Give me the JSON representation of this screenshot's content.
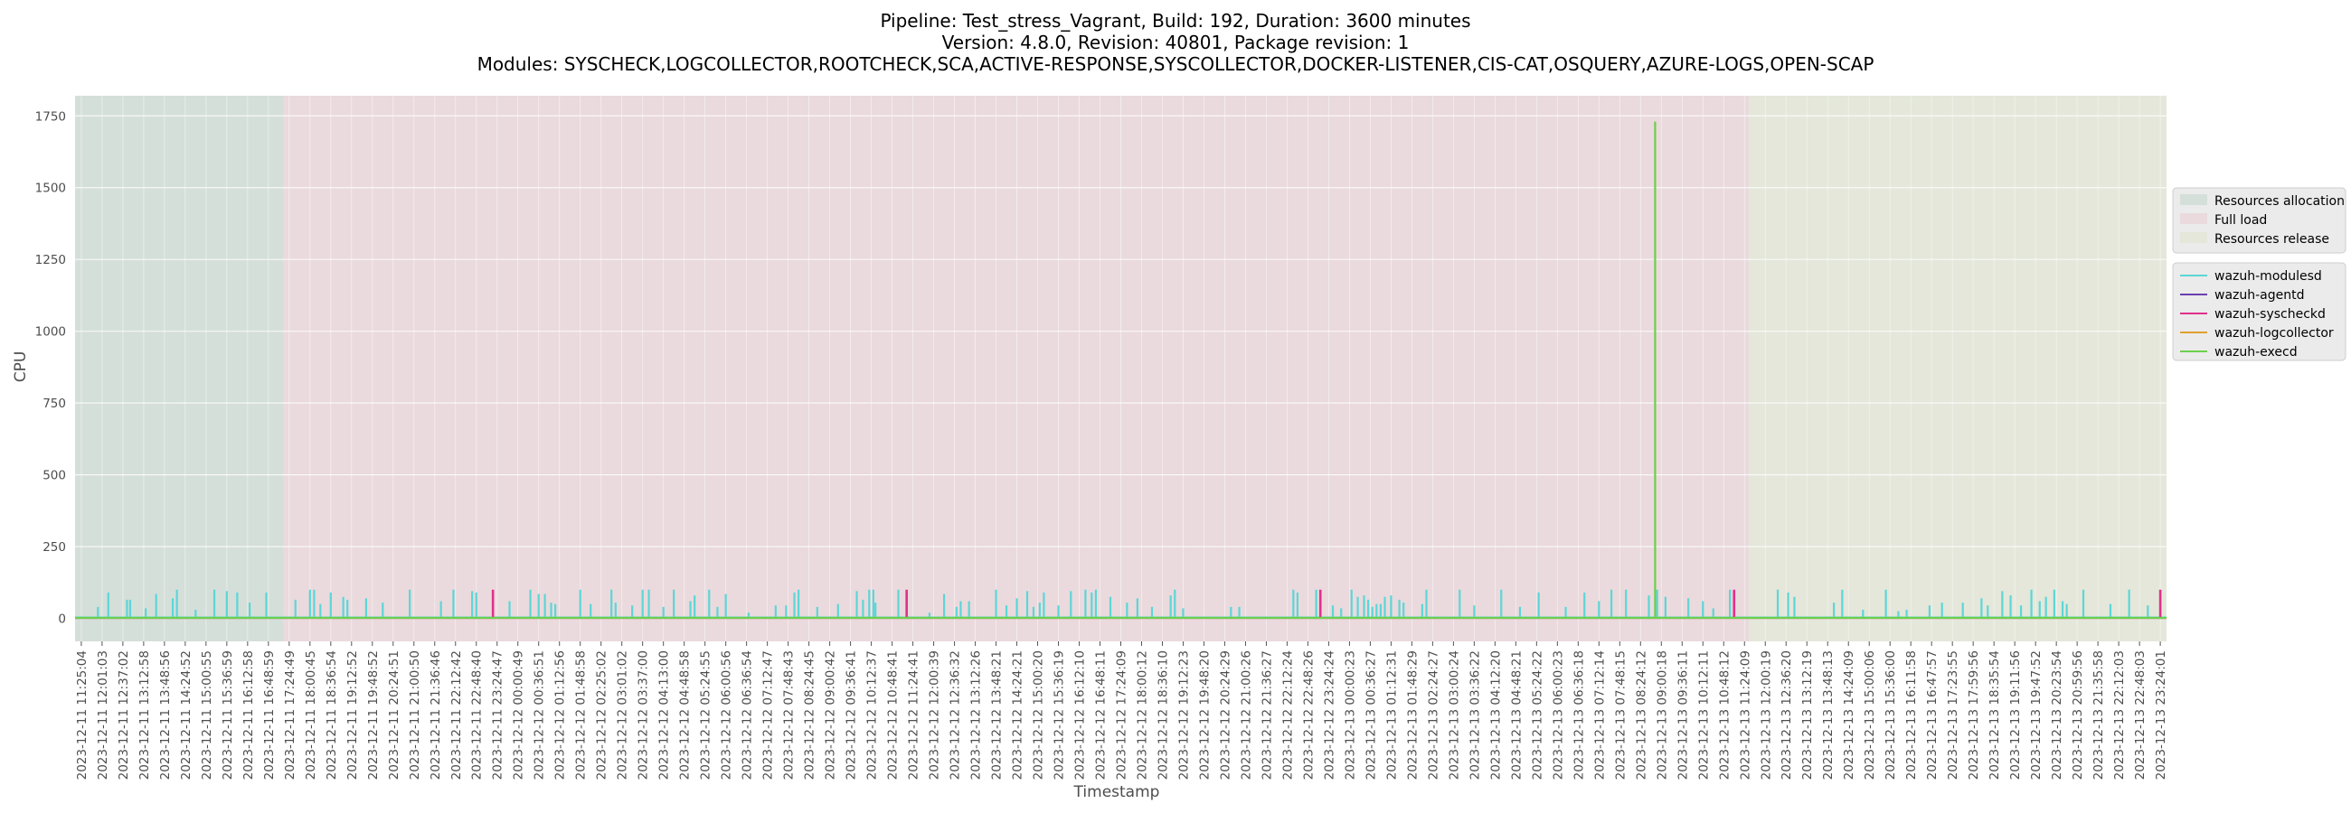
{
  "chart_data": {
    "type": "line",
    "title_lines": [
      "Pipeline: Test_stress_Vagrant, Build: 192, Duration: 3600 minutes",
      "Version: 4.8.0, Revision: 40801, Package revision: 1",
      "Modules: SYSCHECK,LOGCOLLECTOR,ROOTCHECK,SCA,ACTIVE-RESPONSE,SYSCOLLECTOR,DOCKER-LISTENER,CIS-CAT,OSQUERY,AZURE-LOGS,OPEN-SCAP"
    ],
    "xlabel": "Timestamp",
    "ylabel": "CPU",
    "ylim": [
      -80,
      1820
    ],
    "yticks": [
      0,
      250,
      500,
      750,
      1000,
      1250,
      1500,
      1750
    ],
    "grid": true,
    "x_ticks": [
      "2023-12-11 11:25:04",
      "2023-12-11 12:01:03",
      "2023-12-11 12:37:02",
      "2023-12-11 13:12:58",
      "2023-12-11 13:48:56",
      "2023-12-11 14:24:52",
      "2023-12-11 15:00:55",
      "2023-12-11 15:36:59",
      "2023-12-11 16:12:58",
      "2023-12-11 16:48:59",
      "2023-12-11 17:24:49",
      "2023-12-11 18:00:45",
      "2023-12-11 18:36:54",
      "2023-12-11 19:12:52",
      "2023-12-11 19:48:52",
      "2023-12-11 20:24:51",
      "2023-12-11 21:00:50",
      "2023-12-11 21:36:46",
      "2023-12-11 22:12:42",
      "2023-12-11 22:48:40",
      "2023-12-11 23:24:47",
      "2023-12-12 00:00:49",
      "2023-12-12 00:36:51",
      "2023-12-12 01:12:56",
      "2023-12-12 01:48:58",
      "2023-12-12 02:25:02",
      "2023-12-12 03:01:02",
      "2023-12-12 03:37:00",
      "2023-12-12 04:13:00",
      "2023-12-12 04:48:58",
      "2023-12-12 05:24:55",
      "2023-12-12 06:00:56",
      "2023-12-12 06:36:54",
      "2023-12-12 07:12:47",
      "2023-12-12 07:48:43",
      "2023-12-12 08:24:45",
      "2023-12-12 09:00:42",
      "2023-12-12 09:36:41",
      "2023-12-12 10:12:37",
      "2023-12-12 10:48:41",
      "2023-12-12 11:24:41",
      "2023-12-12 12:00:39",
      "2023-12-12 12:36:32",
      "2023-12-12 13:12:26",
      "2023-12-12 13:48:21",
      "2023-12-12 14:24:21",
      "2023-12-12 15:00:20",
      "2023-12-12 15:36:19",
      "2023-12-12 16:12:10",
      "2023-12-12 16:48:11",
      "2023-12-12 17:24:09",
      "2023-12-12 18:00:12",
      "2023-12-12 18:36:10",
      "2023-12-12 19:12:23",
      "2023-12-12 19:48:20",
      "2023-12-12 20:24:29",
      "2023-12-12 21:00:26",
      "2023-12-12 21:36:27",
      "2023-12-12 22:12:24",
      "2023-12-12 22:48:26",
      "2023-12-12 23:24:24",
      "2023-12-13 00:00:23",
      "2023-12-13 00:36:27",
      "2023-12-13 01:12:31",
      "2023-12-13 01:48:29",
      "2023-12-13 02:24:27",
      "2023-12-13 03:00:24",
      "2023-12-13 03:36:22",
      "2023-12-13 04:12:20",
      "2023-12-13 04:48:21",
      "2023-12-13 05:24:22",
      "2023-12-13 06:00:23",
      "2023-12-13 06:36:18",
      "2023-12-13 07:12:14",
      "2023-12-13 07:48:15",
      "2023-12-13 08:24:12",
      "2023-12-13 09:00:18",
      "2023-12-13 09:36:11",
      "2023-12-13 10:12:11",
      "2023-12-13 10:48:12",
      "2023-12-13 11:24:09",
      "2023-12-13 12:00:19",
      "2023-12-13 12:36:20",
      "2023-12-13 13:12:19",
      "2023-12-13 13:48:13",
      "2023-12-13 14:24:09",
      "2023-12-13 15:00:06",
      "2023-12-13 15:36:00",
      "2023-12-13 16:11:58",
      "2023-12-13 16:47:57",
      "2023-12-13 17:23:55",
      "2023-12-13 17:59:56",
      "2023-12-13 18:35:54",
      "2023-12-13 19:11:56",
      "2023-12-13 19:47:52",
      "2023-12-13 20:23:54",
      "2023-12-13 20:59:56",
      "2023-12-13 21:35:58",
      "2023-12-13 22:12:03",
      "2023-12-13 22:48:03",
      "2023-12-13 23:24:01"
    ],
    "phases": [
      {
        "name": "Resources allocation",
        "start": 0,
        "end": 10,
        "color": "#a8c8b4"
      },
      {
        "name": "Full load",
        "start": 10,
        "end": 80.5,
        "color": "#e8b8c0"
      },
      {
        "name": "Resources release",
        "start": 80.5,
        "end": 101,
        "color": "#d8e0b8"
      }
    ],
    "spikes_modulesd": [
      [
        0.8,
        40
      ],
      [
        1.3,
        90
      ],
      [
        2.2,
        65
      ],
      [
        2.35,
        65
      ],
      [
        3.1,
        35
      ],
      [
        3.6,
        85
      ],
      [
        4.4,
        70
      ],
      [
        4.6,
        100
      ],
      [
        5.5,
        30
      ],
      [
        6.4,
        100
      ],
      [
        7.0,
        95
      ],
      [
        7.5,
        90
      ],
      [
        8.1,
        55
      ],
      [
        8.9,
        90
      ],
      [
        10.3,
        65
      ],
      [
        11.0,
        100
      ],
      [
        11.2,
        100
      ],
      [
        11.5,
        50
      ],
      [
        12.0,
        90
      ],
      [
        12.6,
        75
      ],
      [
        12.8,
        65
      ],
      [
        13.7,
        70
      ],
      [
        14.5,
        55
      ],
      [
        15.8,
        100
      ],
      [
        17.3,
        60
      ],
      [
        17.9,
        100
      ],
      [
        18.8,
        95
      ],
      [
        19.0,
        90
      ],
      [
        20.6,
        60
      ],
      [
        21.6,
        100
      ],
      [
        22.0,
        85
      ],
      [
        22.3,
        85
      ],
      [
        22.6,
        55
      ],
      [
        22.8,
        50
      ],
      [
        24.0,
        100
      ],
      [
        24.5,
        50
      ],
      [
        25.5,
        100
      ],
      [
        25.7,
        55
      ],
      [
        26.5,
        45
      ],
      [
        27.0,
        100
      ],
      [
        27.3,
        100
      ],
      [
        28.0,
        40
      ],
      [
        28.5,
        100
      ],
      [
        29.3,
        60
      ],
      [
        29.5,
        80
      ],
      [
        30.2,
        100
      ],
      [
        30.6,
        40
      ],
      [
        31.0,
        85
      ],
      [
        32.1,
        20
      ],
      [
        33.4,
        45
      ],
      [
        33.9,
        45
      ],
      [
        34.3,
        90
      ],
      [
        34.5,
        100
      ],
      [
        35.4,
        40
      ],
      [
        36.4,
        50
      ],
      [
        37.3,
        95
      ],
      [
        37.6,
        65
      ],
      [
        37.9,
        100
      ],
      [
        38.1,
        100
      ],
      [
        38.2,
        55
      ],
      [
        39.3,
        100
      ],
      [
        40.8,
        20
      ],
      [
        41.5,
        85
      ],
      [
        42.1,
        40
      ],
      [
        42.3,
        60
      ],
      [
        42.7,
        60
      ],
      [
        44.0,
        100
      ],
      [
        44.5,
        45
      ],
      [
        45.0,
        70
      ],
      [
        45.5,
        95
      ],
      [
        45.8,
        40
      ],
      [
        46.1,
        55
      ],
      [
        46.3,
        90
      ],
      [
        47.0,
        45
      ],
      [
        47.6,
        95
      ],
      [
        48.3,
        100
      ],
      [
        48.6,
        90
      ],
      [
        48.8,
        100
      ],
      [
        49.5,
        75
      ],
      [
        50.3,
        55
      ],
      [
        50.8,
        70
      ],
      [
        51.5,
        40
      ],
      [
        52.4,
        80
      ],
      [
        52.6,
        100
      ],
      [
        53.0,
        35
      ],
      [
        55.3,
        40
      ],
      [
        55.7,
        40
      ],
      [
        58.3,
        100
      ],
      [
        58.5,
        90
      ],
      [
        59.4,
        100
      ],
      [
        59.6,
        90
      ],
      [
        60.2,
        45
      ],
      [
        60.6,
        35
      ],
      [
        61.1,
        100
      ],
      [
        61.4,
        75
      ],
      [
        61.7,
        80
      ],
      [
        61.9,
        65
      ],
      [
        62.1,
        40
      ],
      [
        62.3,
        50
      ],
      [
        62.5,
        50
      ],
      [
        62.7,
        75
      ],
      [
        63.0,
        80
      ],
      [
        63.4,
        65
      ],
      [
        63.6,
        55
      ],
      [
        64.5,
        50
      ],
      [
        64.7,
        100
      ],
      [
        66.3,
        100
      ],
      [
        67.0,
        45
      ],
      [
        68.3,
        100
      ],
      [
        69.2,
        40
      ],
      [
        70.1,
        90
      ],
      [
        71.4,
        40
      ],
      [
        72.3,
        90
      ],
      [
        73.0,
        60
      ],
      [
        73.6,
        100
      ],
      [
        74.3,
        100
      ],
      [
        75.4,
        80
      ],
      [
        75.8,
        100
      ],
      [
        76.2,
        75
      ],
      [
        77.3,
        70
      ],
      [
        78.0,
        60
      ],
      [
        78.5,
        35
      ],
      [
        79.3,
        100
      ],
      [
        81.6,
        100
      ],
      [
        82.1,
        90
      ],
      [
        82.4,
        75
      ],
      [
        84.3,
        55
      ],
      [
        84.7,
        100
      ],
      [
        85.7,
        30
      ],
      [
        86.8,
        100
      ],
      [
        87.4,
        25
      ],
      [
        87.8,
        30
      ],
      [
        88.9,
        45
      ],
      [
        89.5,
        55
      ],
      [
        90.5,
        55
      ],
      [
        91.4,
        70
      ],
      [
        91.7,
        45
      ],
      [
        92.4,
        95
      ],
      [
        92.8,
        80
      ],
      [
        93.3,
        45
      ],
      [
        93.8,
        100
      ],
      [
        94.2,
        60
      ],
      [
        94.5,
        75
      ],
      [
        94.9,
        100
      ],
      [
        95.3,
        60
      ],
      [
        95.5,
        50
      ],
      [
        96.3,
        100
      ],
      [
        97.6,
        50
      ],
      [
        98.5,
        100
      ],
      [
        99.4,
        45
      ]
    ],
    "spikes_syscheckd": [
      [
        19.8,
        100
      ],
      [
        39.7,
        100
      ],
      [
        59.6,
        100
      ],
      [
        79.5,
        100
      ],
      [
        100.0,
        100
      ]
    ],
    "spikes_execd": [
      [
        75.7,
        1730
      ]
    ],
    "legend_phases": [
      "Resources allocation",
      "Full load",
      "Resources release"
    ],
    "series": [
      {
        "name": "wazuh-modulesd",
        "color": "#5cd6d6"
      },
      {
        "name": "wazuh-agentd",
        "color": "#6a3fb0"
      },
      {
        "name": "wazuh-syscheckd",
        "color": "#e0308c"
      },
      {
        "name": "wazuh-logcollector",
        "color": "#e0a030"
      },
      {
        "name": "wazuh-execd",
        "color": "#6ccf4c"
      }
    ]
  }
}
